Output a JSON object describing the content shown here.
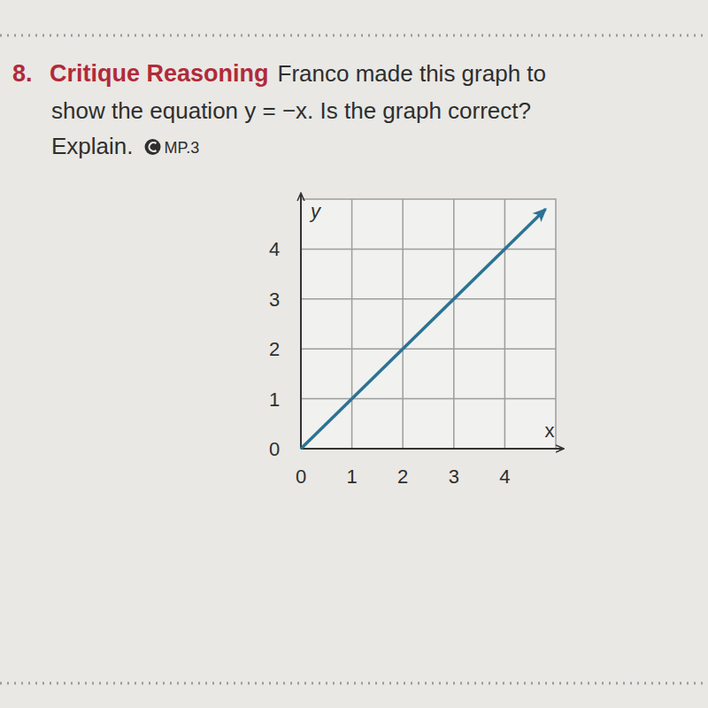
{
  "problem": {
    "number": "8.",
    "heading": "Critique Reasoning",
    "text_lines": [
      "Franco made this graph to",
      "show the equation y = −x. Is the graph correct?",
      "Explain."
    ],
    "tag": "MP.3"
  },
  "chart_data": {
    "type": "line",
    "x_label": "x",
    "y_label": "y",
    "x": [
      0,
      4.8
    ],
    "values": [
      0,
      4.8
    ],
    "color": "#2b7393",
    "marker": "arrow",
    "xlim": [
      0,
      5
    ],
    "ylim": [
      0,
      5
    ],
    "xticks": [
      0,
      1,
      2,
      3,
      4
    ],
    "yticks": [
      0,
      1,
      2,
      3,
      4
    ],
    "grid": true
  }
}
